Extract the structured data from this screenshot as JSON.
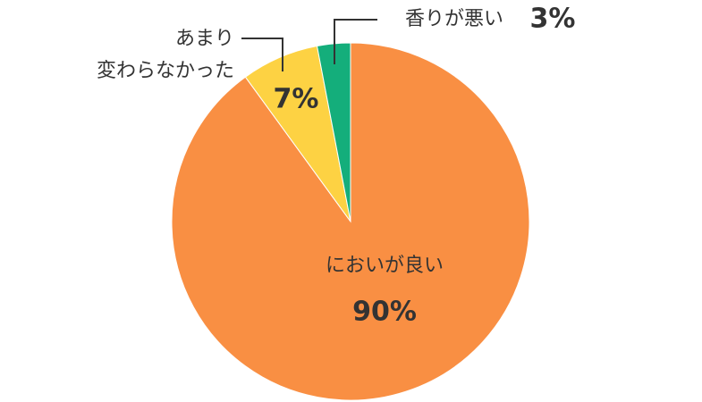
{
  "chart_data": {
    "type": "pie",
    "categories": [
      "においが良い",
      "あまり\n変わらなかった",
      "香りが悪い"
    ],
    "values": [
      90,
      7,
      3
    ],
    "value_labels": [
      "90%",
      "7%",
      "3%"
    ],
    "colors": [
      "#f98f43",
      "#fdd243",
      "#14ae7b"
    ]
  }
}
